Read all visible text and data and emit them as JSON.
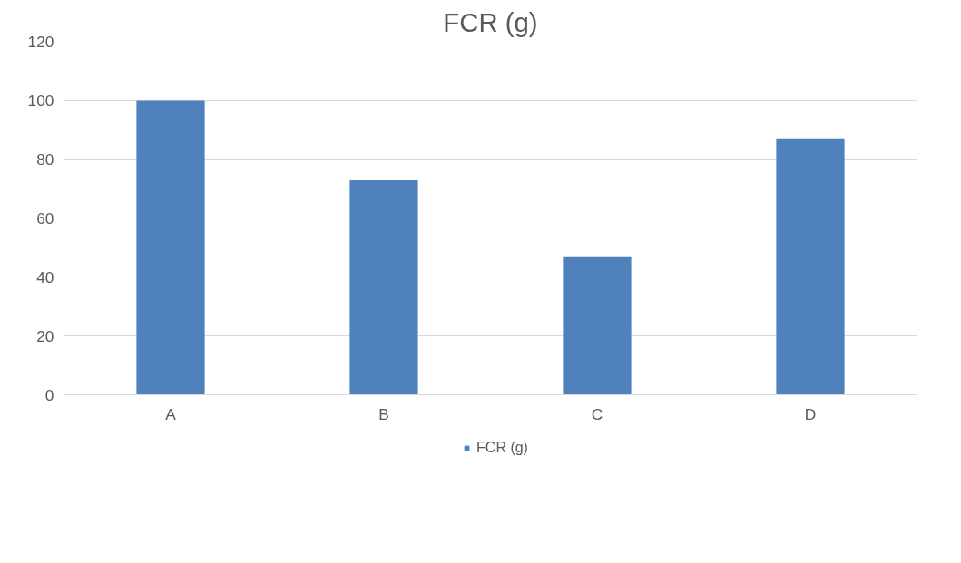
{
  "chart_data": {
    "type": "bar",
    "title": "FCR (g)",
    "categories": [
      "A",
      "B",
      "C",
      "D"
    ],
    "series": [
      {
        "name": "FCR (g)",
        "color": "#4f81bd",
        "values": [
          100,
          73,
          47,
          87
        ]
      }
    ],
    "ylim": [
      0,
      120
    ],
    "yticks": [
      0,
      20,
      40,
      60,
      80,
      100,
      120
    ],
    "grid": "y",
    "legend": "bottom"
  }
}
